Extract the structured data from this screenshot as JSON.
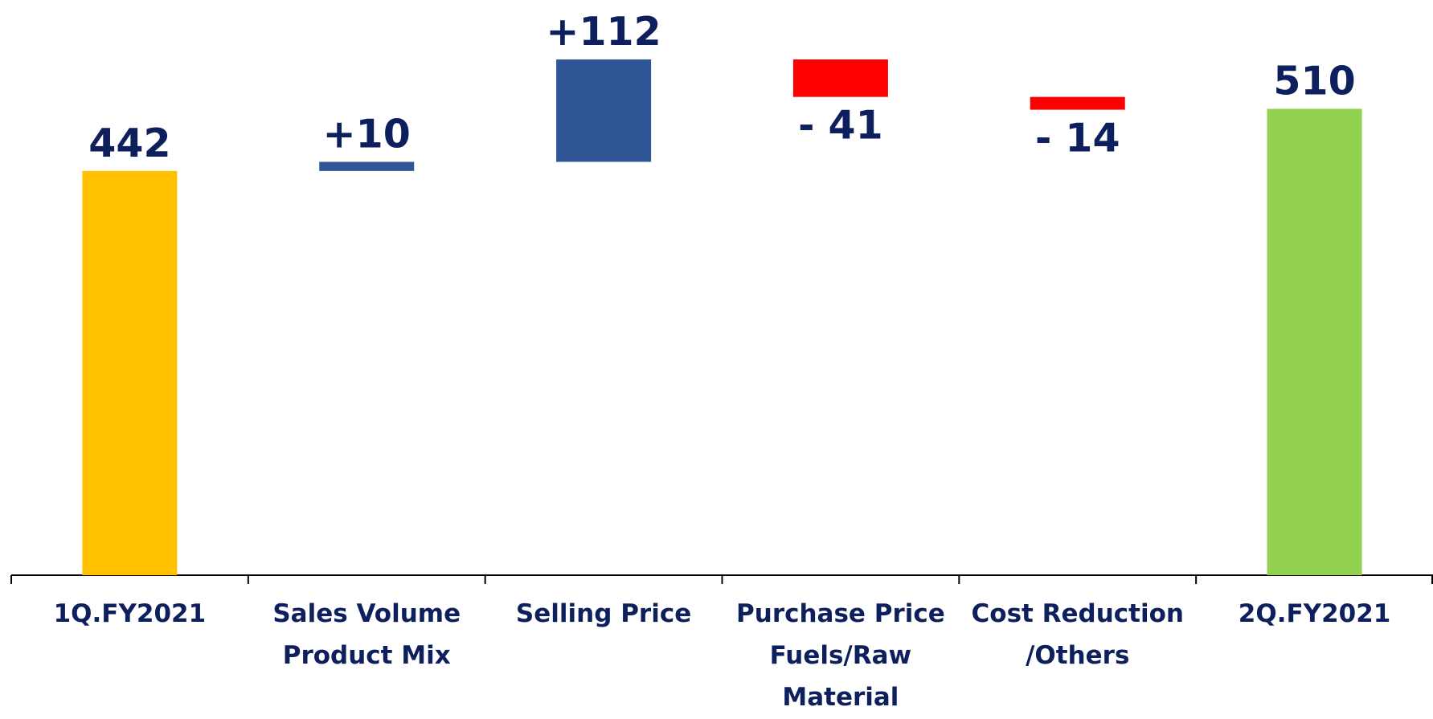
{
  "chart_data": {
    "type": "waterfall",
    "categories": [
      "1Q.FY2021",
      "Sales Volume\nProduct Mix",
      "Selling Price",
      "Purchase Price\nFuels/Raw\nMaterial",
      "Cost Reduction\n/Others",
      "2Q.FY2021"
    ],
    "values": [
      442,
      10,
      112,
      -41,
      -14,
      510
    ],
    "value_labels": [
      "442",
      "+10",
      "+112",
      "- 41",
      "- 14",
      "510"
    ],
    "measure": [
      "absolute",
      "relative",
      "relative",
      "relative",
      "relative",
      "total"
    ],
    "colors": [
      "#ffc000",
      "#2f5597",
      "#2f5597",
      "#ff0000",
      "#ff0000",
      "#92d050"
    ],
    "ylim": [
      0,
      629
    ]
  }
}
